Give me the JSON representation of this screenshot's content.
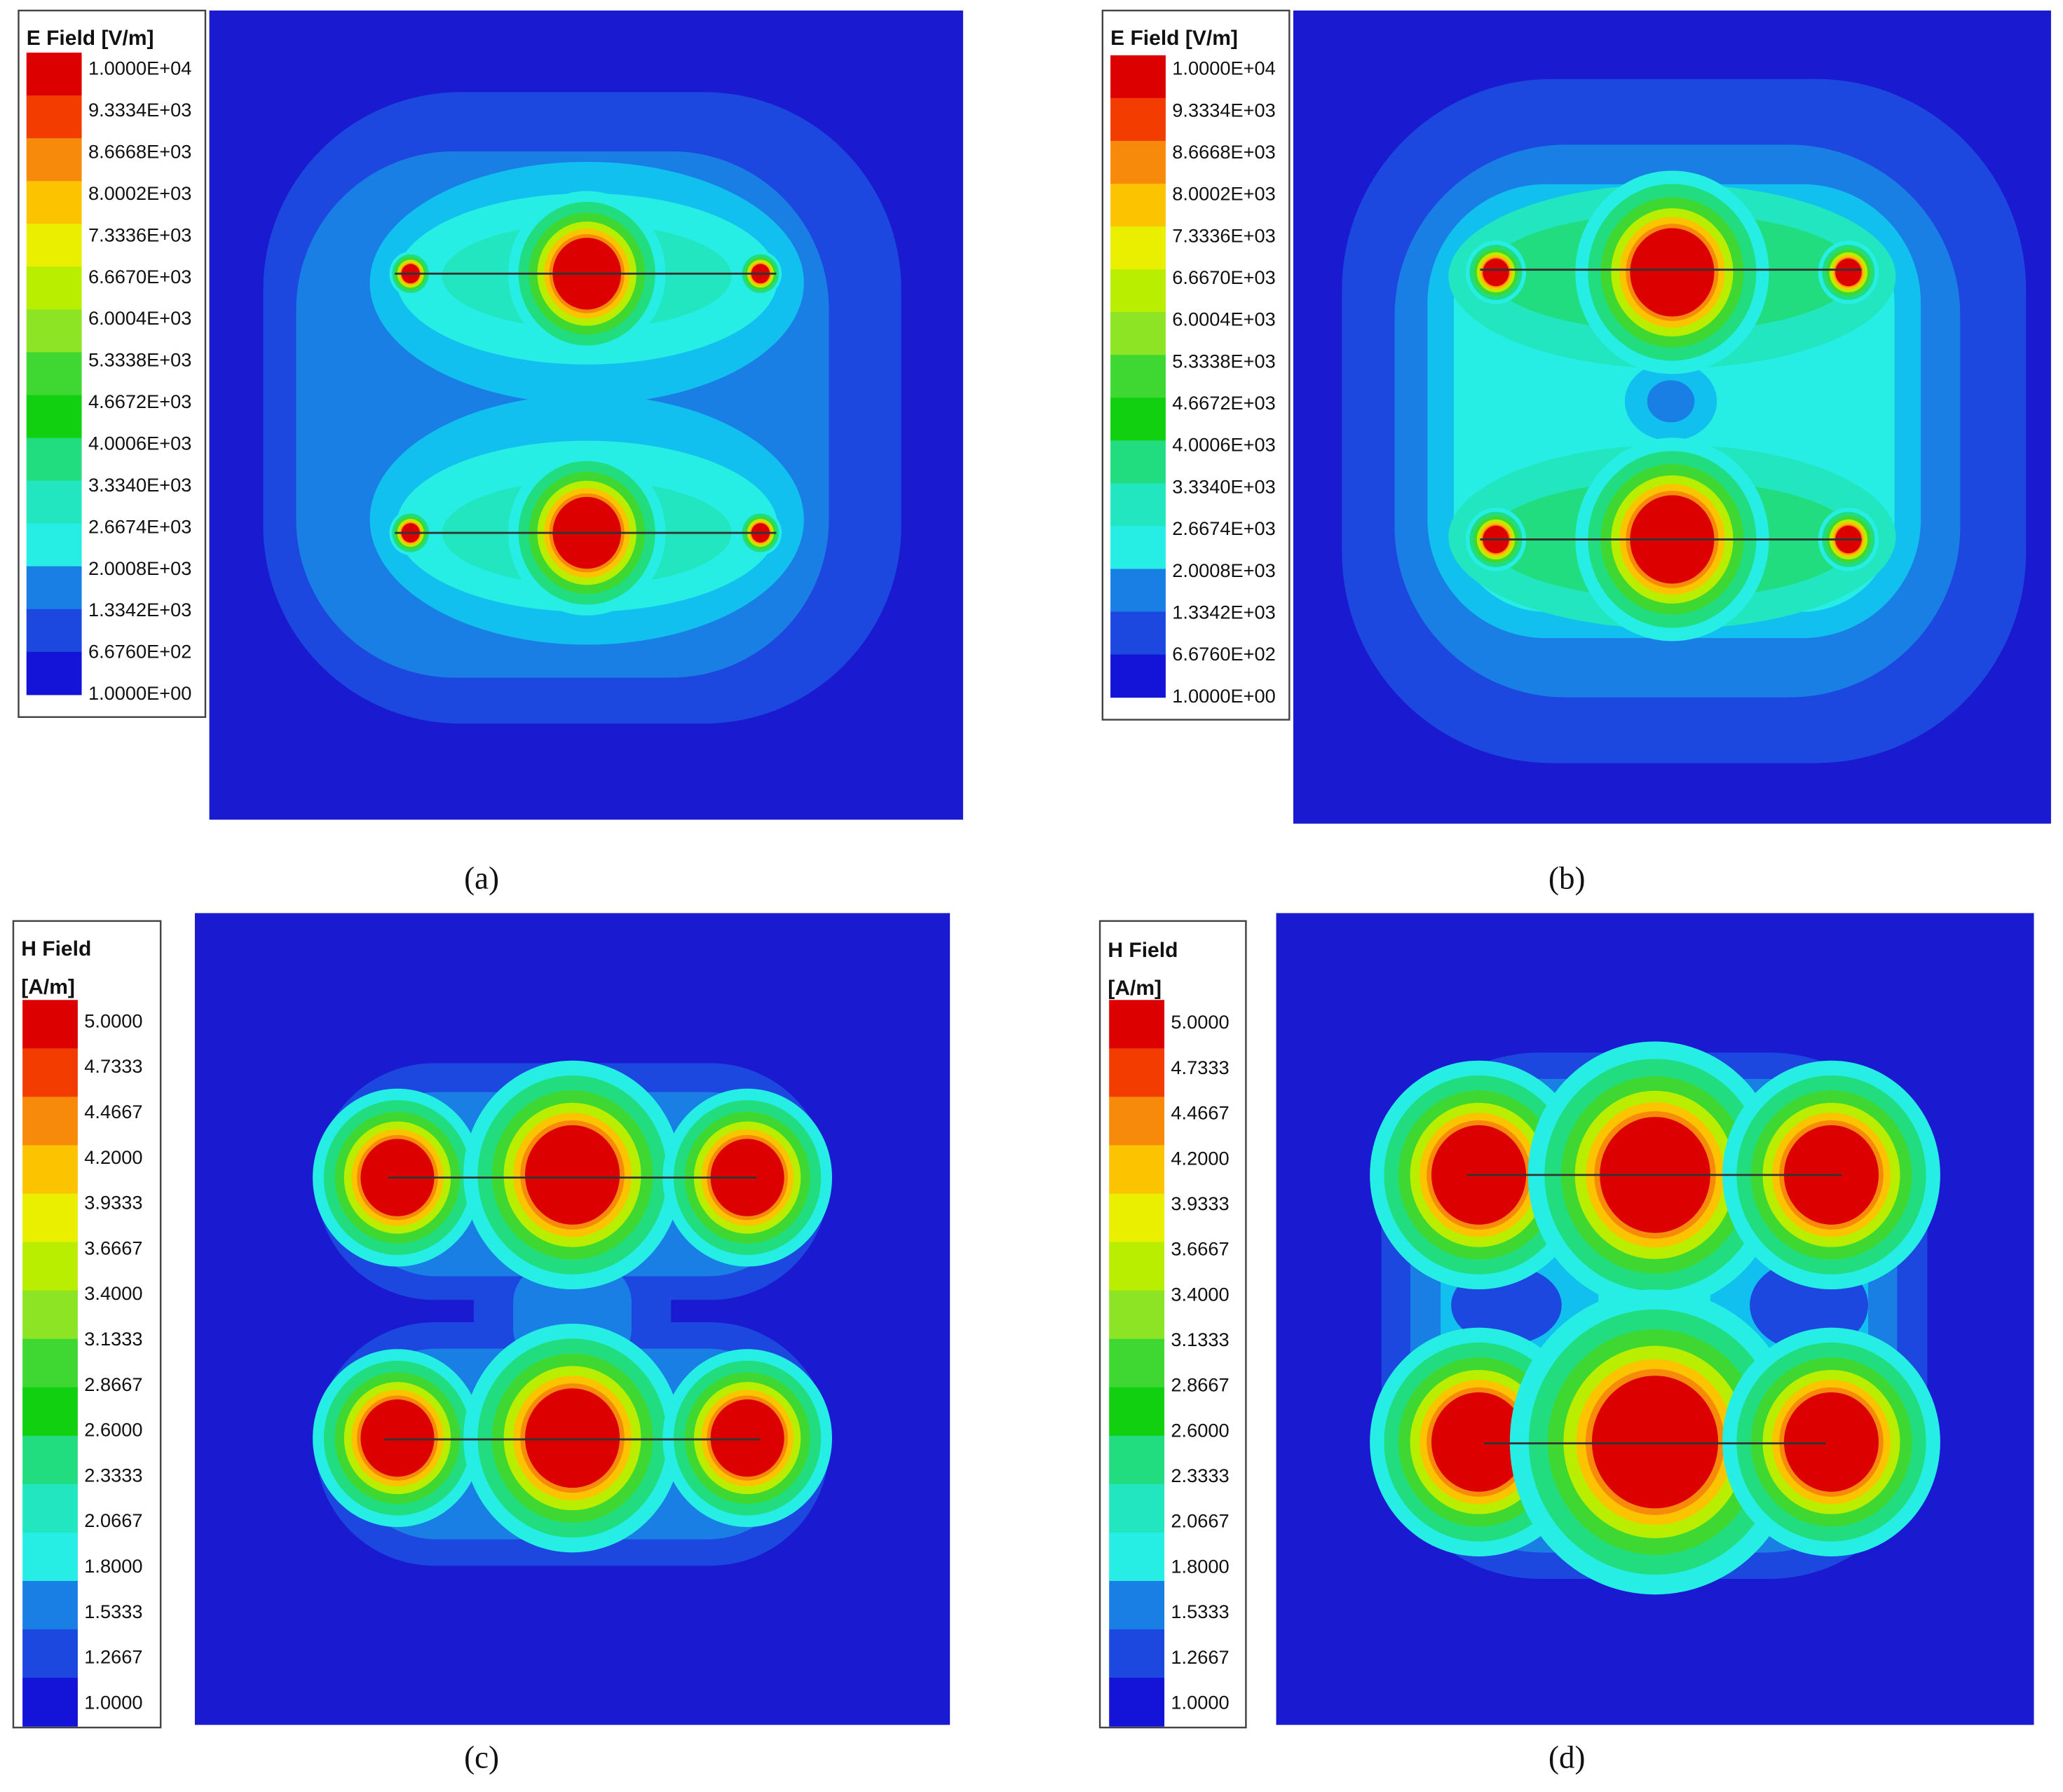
{
  "panels": [
    {
      "title_lines": [
        "E Field [V/m]"
      ],
      "labels": [
        "1.0000E+04",
        "9.3334E+03",
        "8.6668E+03",
        "8.0002E+03",
        "7.3336E+03",
        "6.6670E+03",
        "6.0004E+03",
        "5.3338E+03",
        "4.6672E+03",
        "4.0006E+03",
        "3.3340E+03",
        "2.6674E+03",
        "2.0008E+03",
        "1.3342E+03",
        "6.6760E+02",
        "1.0000E+00"
      ],
      "caption": "(a)"
    },
    {
      "title_lines": [
        "E Field [V/m]"
      ],
      "labels": [
        "1.0000E+04",
        "9.3334E+03",
        "8.6668E+03",
        "8.0002E+03",
        "7.3336E+03",
        "6.6670E+03",
        "6.0004E+03",
        "5.3338E+03",
        "4.6672E+03",
        "4.0006E+03",
        "3.3340E+03",
        "2.6674E+03",
        "2.0008E+03",
        "1.3342E+03",
        "6.6760E+02",
        "1.0000E+00"
      ],
      "caption": "(b)"
    },
    {
      "title_lines": [
        "H Field",
        "[A/m]"
      ],
      "labels": [
        "5.0000",
        "4.7333",
        "4.4667",
        "4.2000",
        "3.9333",
        "3.6667",
        "3.4000",
        "3.1333",
        "2.8667",
        "2.6000",
        "2.3333",
        "2.0667",
        "1.8000",
        "1.5333",
        "1.2667",
        "1.0000"
      ],
      "caption": "(c)"
    },
    {
      "title_lines": [
        "H Field",
        "[A/m]"
      ],
      "labels": [
        "5.0000",
        "4.7333",
        "4.4667",
        "4.2000",
        "3.9333",
        "3.6667",
        "3.4000",
        "3.1333",
        "2.8667",
        "2.6000",
        "2.3333",
        "2.0667",
        "1.8000",
        "1.5333",
        "1.2667",
        "1.0000"
      ],
      "caption": "(d)"
    }
  ]
}
